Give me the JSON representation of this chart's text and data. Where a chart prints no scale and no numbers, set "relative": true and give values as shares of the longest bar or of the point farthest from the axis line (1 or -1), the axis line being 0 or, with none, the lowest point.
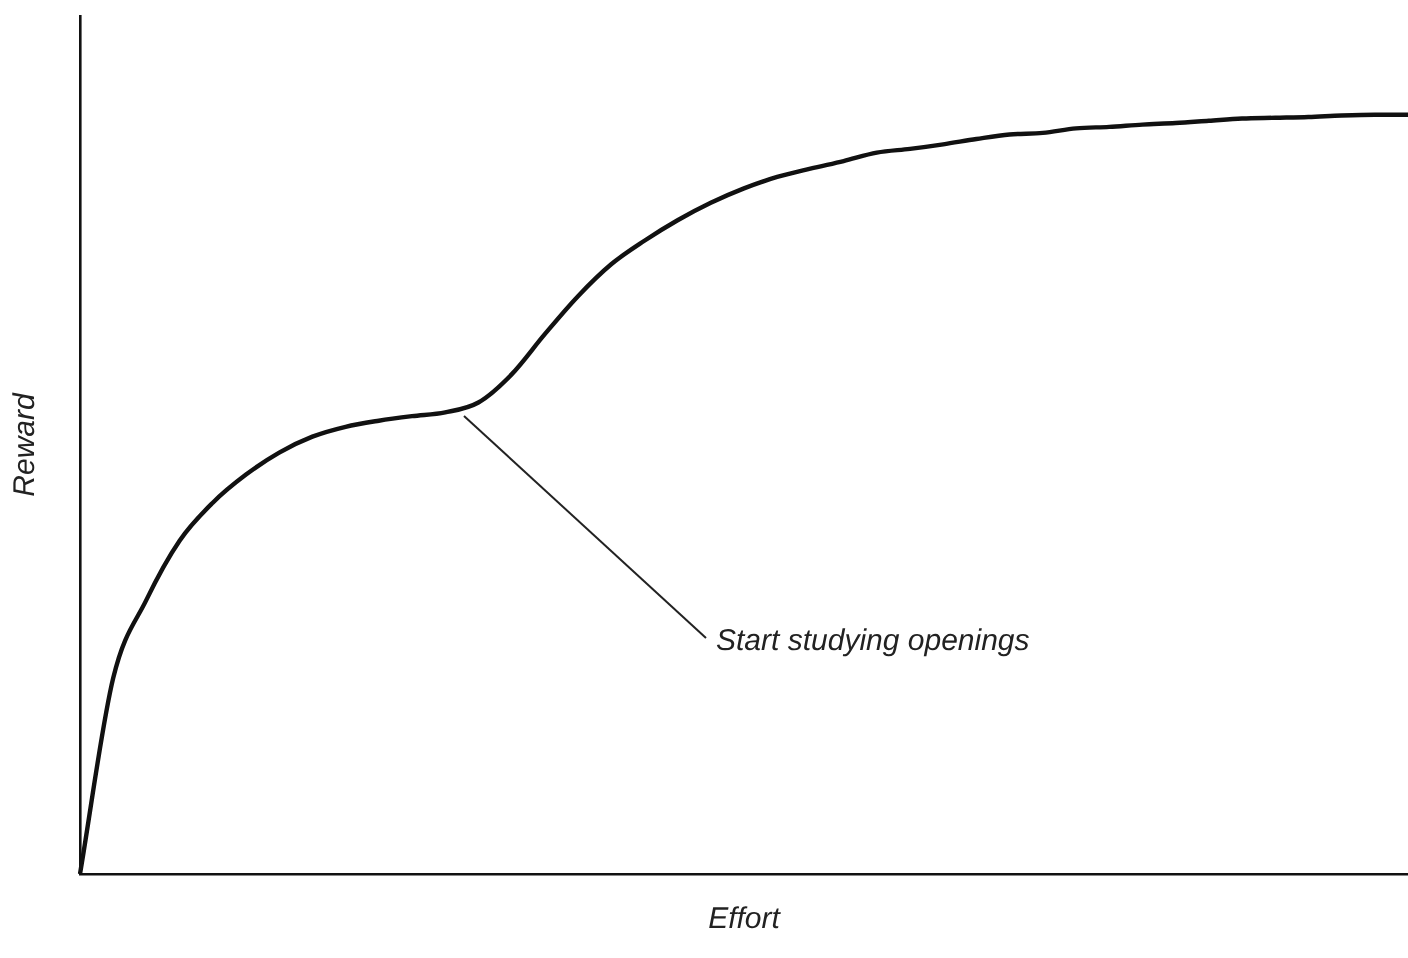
{
  "chart_data": {
    "type": "line",
    "relative": true,
    "xlabel": "Effort",
    "ylabel": "Reward",
    "color": "#111111",
    "grid": false,
    "legend": false,
    "marker": "none",
    "line_style": "solid",
    "categories": [
      null,
      null,
      null,
      null,
      null,
      null,
      null,
      null,
      null,
      null,
      null,
      null,
      null,
      null,
      null,
      null,
      null,
      null,
      null,
      null,
      null,
      null,
      null,
      null,
      null,
      null,
      null,
      null,
      null,
      null,
      null,
      null,
      null,
      null,
      null,
      null,
      null,
      null,
      null,
      null,
      null
    ],
    "values": [
      0,
      0.258,
      0.361,
      0.439,
      0.489,
      0.526,
      0.555,
      0.576,
      0.589,
      0.597,
      0.603,
      0.608,
      0.621,
      0.658,
      0.711,
      0.761,
      0.803,
      0.834,
      0.861,
      0.884,
      0.903,
      0.918,
      0.929,
      0.939,
      0.95,
      0.955,
      0.961,
      0.968,
      0.974,
      0.976,
      0.982,
      0.984,
      0.987,
      0.989,
      0.992,
      0.995,
      0.996,
      0.997,
      0.999,
      1,
      1
    ],
    "annotations": [
      "Start studying openings"
    ]
  }
}
